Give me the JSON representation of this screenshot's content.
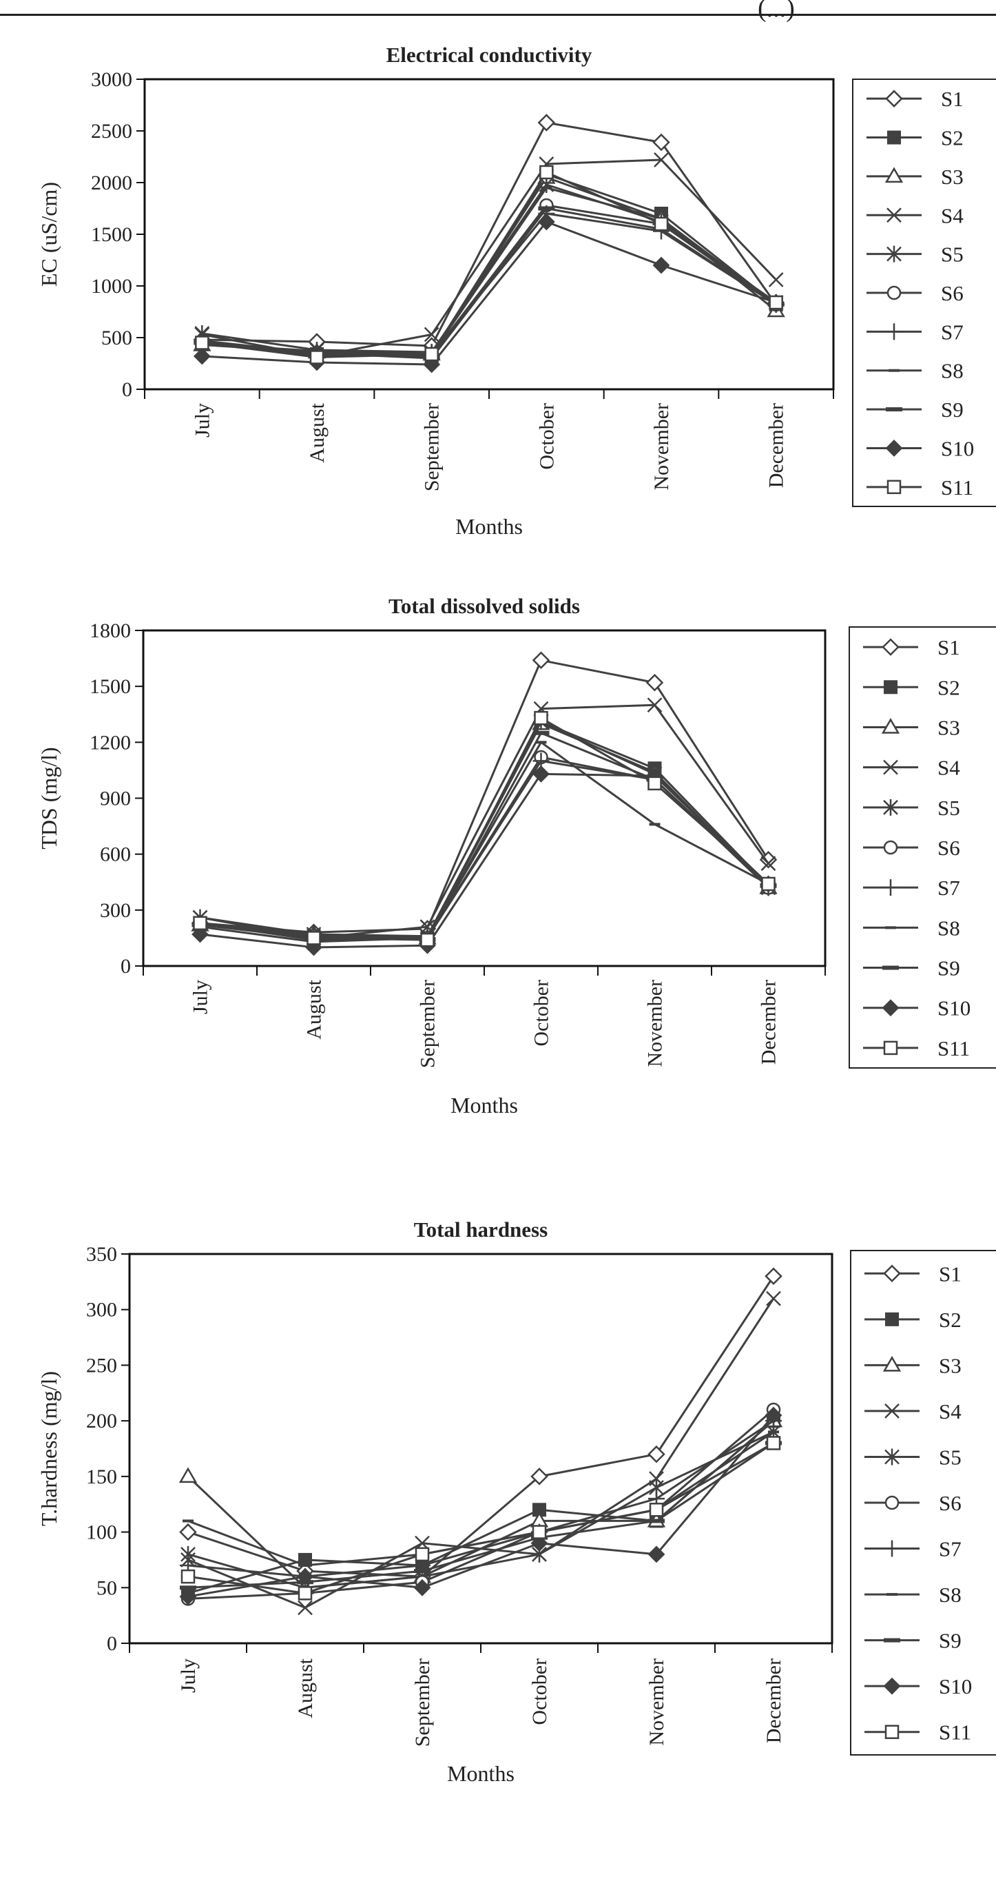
{
  "header": {
    "fragment": "(...)"
  },
  "styles": {
    "line_color": "#404040",
    "markers": [
      "diamond-open",
      "square-filled",
      "triangle-open",
      "x-cross",
      "star-asterisk",
      "circle-open",
      "plus-cross",
      "dash-short",
      "dash-wide",
      "diamond-filled",
      "square-open"
    ]
  },
  "chart_data": [
    {
      "type": "line",
      "title": "Electrical conductivity",
      "xlabel": "Months",
      "ylabel": "EC (uS/cm)",
      "categories": [
        "July",
        "August",
        "September",
        "October",
        "November",
        "December"
      ],
      "ylim": [
        0,
        3000
      ],
      "yticks": [
        0,
        500,
        1000,
        1500,
        2000,
        2500,
        3000
      ],
      "grid": false,
      "legend_position": "right",
      "series": [
        {
          "name": "S1",
          "values": [
            480,
            460,
            420,
            2580,
            2390,
            820
          ]
        },
        {
          "name": "S2",
          "values": [
            450,
            340,
            320,
            2080,
            1700,
            820
          ]
        },
        {
          "name": "S3",
          "values": [
            430,
            360,
            340,
            2050,
            1650,
            760
          ]
        },
        {
          "name": "S4",
          "values": [
            530,
            320,
            530,
            2180,
            2220,
            1060
          ]
        },
        {
          "name": "S5",
          "values": [
            540,
            380,
            360,
            1980,
            1620,
            840
          ]
        },
        {
          "name": "S6",
          "values": [
            460,
            330,
            330,
            1780,
            1600,
            820
          ]
        },
        {
          "name": "S7",
          "values": [
            470,
            350,
            340,
            1700,
            1530,
            820
          ]
        },
        {
          "name": "S8",
          "values": [
            440,
            370,
            340,
            1950,
            1650,
            820
          ]
        },
        {
          "name": "S9",
          "values": [
            450,
            350,
            300,
            1750,
            1550,
            820
          ]
        },
        {
          "name": "S10",
          "values": [
            320,
            260,
            240,
            1620,
            1200,
            840
          ]
        },
        {
          "name": "S11",
          "values": [
            450,
            310,
            340,
            2100,
            1600,
            840
          ]
        }
      ]
    },
    {
      "type": "line",
      "title": "Total dissolved solids",
      "xlabel": "Months",
      "ylabel": "TDS (mg/l)",
      "categories": [
        "July",
        "August",
        "September",
        "October",
        "November",
        "December"
      ],
      "ylim": [
        0,
        1800
      ],
      "yticks": [
        0,
        300,
        600,
        900,
        1200,
        1500,
        1800
      ],
      "grid": false,
      "legend_position": "right",
      "series": [
        {
          "name": "S1",
          "values": [
            230,
            180,
            200,
            1640,
            1520,
            570
          ]
        },
        {
          "name": "S2",
          "values": [
            230,
            160,
            150,
            1310,
            1060,
            430
          ]
        },
        {
          "name": "S3",
          "values": [
            220,
            170,
            150,
            1300,
            1040,
            420
          ]
        },
        {
          "name": "S4",
          "values": [
            260,
            150,
            210,
            1380,
            1400,
            550
          ]
        },
        {
          "name": "S5",
          "values": [
            260,
            170,
            160,
            1310,
            1030,
            420
          ]
        },
        {
          "name": "S6",
          "values": [
            230,
            140,
            150,
            1120,
            1000,
            420
          ]
        },
        {
          "name": "S7",
          "values": [
            220,
            150,
            150,
            1100,
            1000,
            430
          ]
        },
        {
          "name": "S8",
          "values": [
            210,
            130,
            150,
            1200,
            760,
            440
          ]
        },
        {
          "name": "S9",
          "values": [
            220,
            160,
            140,
            1250,
            1000,
            430
          ]
        },
        {
          "name": "S10",
          "values": [
            170,
            100,
            110,
            1030,
            1020,
            440
          ]
        },
        {
          "name": "S11",
          "values": [
            230,
            150,
            140,
            1330,
            980,
            440
          ]
        }
      ]
    },
    {
      "type": "line",
      "title": "Total hardness",
      "xlabel": "Months",
      "ylabel": "T.hardness (mg/l)",
      "categories": [
        "July",
        "August",
        "September",
        "October",
        "November",
        "December"
      ],
      "ylim": [
        0,
        350
      ],
      "yticks": [
        0,
        50,
        100,
        150,
        200,
        250,
        300,
        350
      ],
      "grid": false,
      "legend_position": "right",
      "series": [
        {
          "name": "S1",
          "values": [
            100,
            65,
            60,
            150,
            170,
            330
          ]
        },
        {
          "name": "S2",
          "values": [
            45,
            75,
            70,
            120,
            110,
            200
          ]
        },
        {
          "name": "S3",
          "values": [
            150,
            50,
            60,
            110,
            110,
            200
          ]
        },
        {
          "name": "S4",
          "values": [
            75,
            32,
            90,
            80,
            148,
            310
          ]
        },
        {
          "name": "S5",
          "values": [
            80,
            50,
            60,
            80,
            140,
            190
          ]
        },
        {
          "name": "S6",
          "values": [
            40,
            45,
            55,
            100,
            120,
            210
          ]
        },
        {
          "name": "S7",
          "values": [
            70,
            60,
            70,
            100,
            130,
            200
          ]
        },
        {
          "name": "S8",
          "values": [
            110,
            70,
            80,
            100,
            120,
            190
          ]
        },
        {
          "name": "S9",
          "values": [
            50,
            55,
            65,
            95,
            110,
            180
          ]
        },
        {
          "name": "S10",
          "values": [
            42,
            60,
            50,
            90,
            80,
            205
          ]
        },
        {
          "name": "S11",
          "values": [
            60,
            45,
            80,
            100,
            120,
            180
          ]
        }
      ]
    }
  ]
}
